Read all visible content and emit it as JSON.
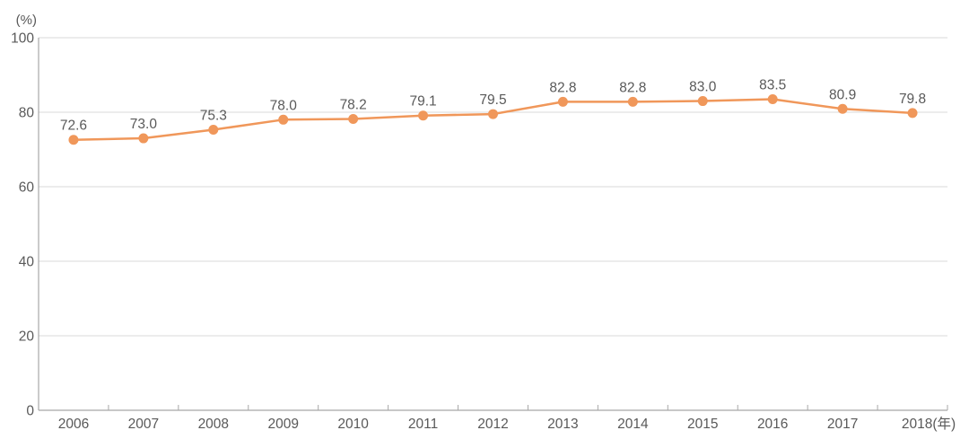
{
  "chart_data": {
    "type": "line",
    "title": "",
    "unit_label": "(%)",
    "x_axis_suffix": "(年)",
    "categories": [
      "2006",
      "2007",
      "2008",
      "2009",
      "2010",
      "2011",
      "2012",
      "2013",
      "2014",
      "2015",
      "2016",
      "2017",
      "2018"
    ],
    "values": [
      72.6,
      73.0,
      75.3,
      78.0,
      78.2,
      79.1,
      79.5,
      82.8,
      82.8,
      83.0,
      83.5,
      80.9,
      79.8
    ],
    "value_labels": [
      "72.6",
      "73.0",
      "75.3",
      "78.0",
      "78.2",
      "79.1",
      "79.5",
      "82.8",
      "82.8",
      "83.0",
      "83.5",
      "80.9",
      "79.8"
    ],
    "xlabel": "",
    "ylabel": "(%)",
    "ylim": [
      0,
      100
    ],
    "yticks": [
      0,
      20,
      40,
      60,
      80,
      100
    ],
    "ytick_labels": [
      "0",
      "20",
      "40",
      "60",
      "80",
      "100"
    ],
    "grid": true,
    "legend": "none",
    "colors": {
      "line": "#F0975A",
      "marker": "#F0975A",
      "gridline": "#D9D9D9",
      "axis": "#A8A8A8",
      "tick_text": "#595959",
      "data_label_text": "#595959",
      "background": "#FFFFFF"
    }
  }
}
